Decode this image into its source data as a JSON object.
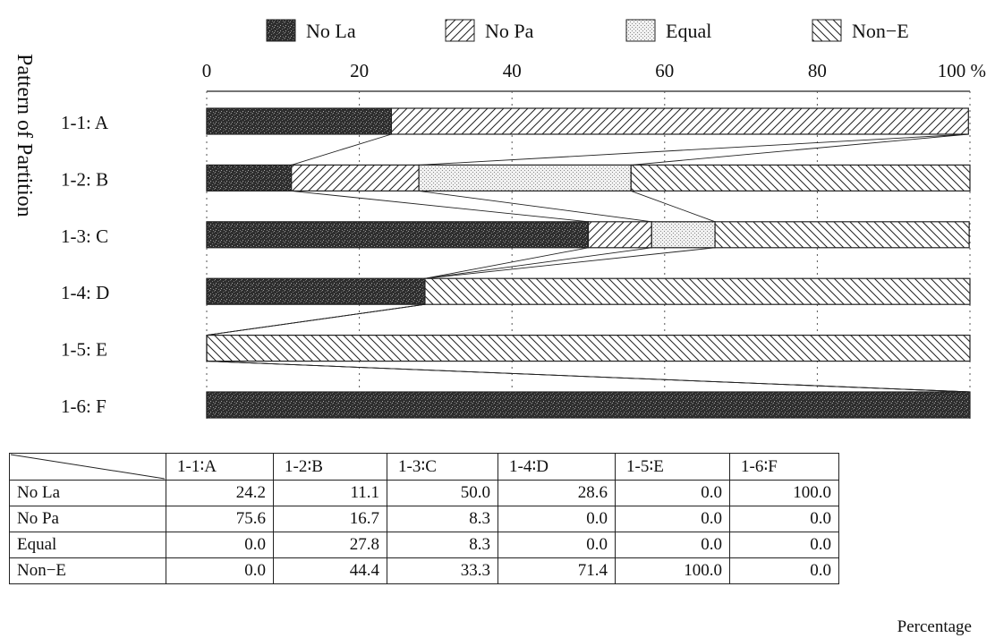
{
  "chart_data": {
    "type": "bar",
    "orientation": "horizontal",
    "stacked": true,
    "ylabel": "Pattern of Partition",
    "categories": [
      "1-1: A",
      "1-2: B",
      "1-3: C",
      "1-4: D",
      "1-5: E",
      "1-6: F"
    ],
    "x_ticks": [
      "0",
      "20",
      "40",
      "60",
      "80",
      "100 %"
    ],
    "xlim": [
      0,
      100
    ],
    "grid": "vertical dotted",
    "legend_position": "top",
    "series": [
      {
        "name": "No La",
        "pattern": "dark-stipple",
        "values": [
          24.2,
          11.1,
          50.0,
          28.6,
          0.0,
          100.0
        ]
      },
      {
        "name": "No Pa",
        "pattern": "diagonal-hatch",
        "values": [
          75.6,
          16.7,
          8.3,
          0.0,
          0.0,
          0.0
        ]
      },
      {
        "name": "Equal",
        "pattern": "light-dots",
        "values": [
          0.0,
          27.8,
          8.3,
          0.0,
          0.0,
          0.0
        ]
      },
      {
        "name": "Non−E",
        "pattern": "back-diagonal-hatch",
        "values": [
          0.0,
          44.4,
          33.3,
          71.4,
          100.0,
          0.0
        ]
      }
    ]
  },
  "table": {
    "columns": [
      "1-1∶A",
      "1-2∶B",
      "1-3∶C",
      "1-4∶D",
      "1-5∶E",
      "1-6∶F"
    ],
    "rows": [
      {
        "label": "No La",
        "cells": [
          "24.2",
          "11.1",
          "50.0",
          "28.6",
          "0.0",
          "100.0"
        ]
      },
      {
        "label": "No Pa",
        "cells": [
          "75.6",
          "16.7",
          "8.3",
          "0.0",
          "0.0",
          "0.0"
        ]
      },
      {
        "label": "Equal",
        "cells": [
          "0.0",
          "27.8",
          "8.3",
          "0.0",
          "0.0",
          "0.0"
        ]
      },
      {
        "label": "Non−E",
        "cells": [
          "0.0",
          "44.4",
          "33.3",
          "71.4",
          "100.0",
          "0.0"
        ]
      }
    ]
  },
  "note": "Percentage"
}
